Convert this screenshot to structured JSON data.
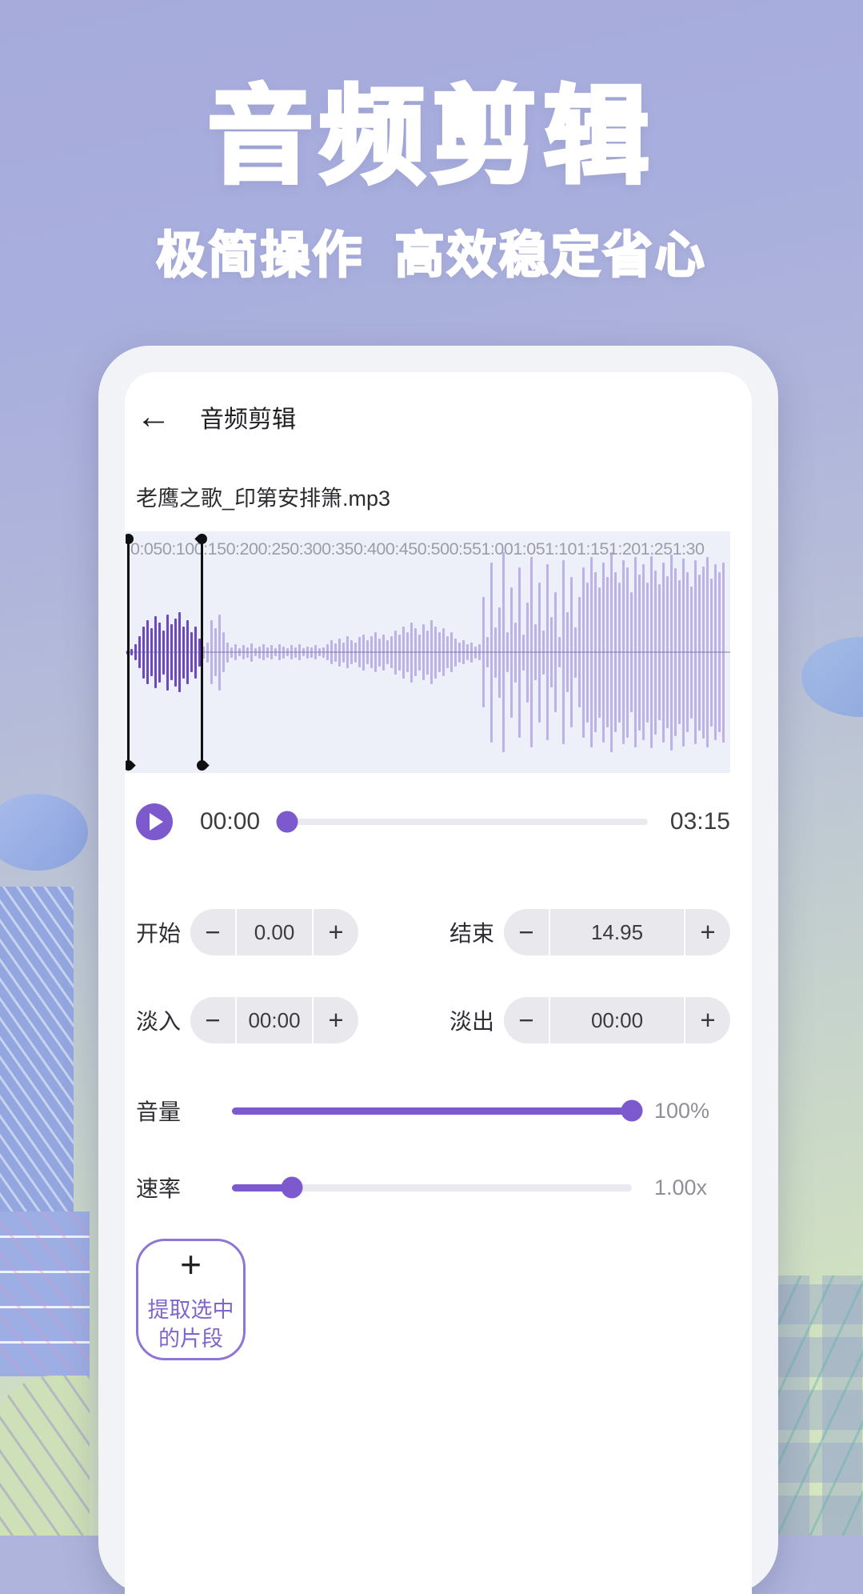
{
  "colors": {
    "accent_purple": "#7c59cc",
    "wave_selected": "#6b48c4",
    "wave_normal": "#b0a2e8",
    "wave_background": "#edf0f9",
    "stepper_background": "#e9e9ed",
    "hero_text": "#ffffff"
  },
  "hero": {
    "title": "音频剪辑",
    "subtitle": "极简操作 高效稳定省心"
  },
  "app": {
    "header": {
      "back_icon": "←",
      "title": "音频剪辑"
    },
    "file_name": "老鹰之歌_印第安排箫.mp3",
    "waveform": {
      "time_labels": [
        "0:05",
        "0:10",
        "0:15",
        "0:20",
        "0:25",
        "0:30",
        "0:35",
        "0:40",
        "0:45",
        "0:50",
        "0:55",
        "1:00",
        "1:05",
        "1:10",
        "1:15",
        "1:20",
        "1:25",
        "1:30"
      ],
      "selected_until_index": 19,
      "amplitudes": [
        0.02,
        0.03,
        0.08,
        0.16,
        0.26,
        0.32,
        0.24,
        0.36,
        0.3,
        0.22,
        0.38,
        0.28,
        0.34,
        0.4,
        0.26,
        0.32,
        0.2,
        0.26,
        0.14,
        0.06,
        0.1,
        0.32,
        0.24,
        0.38,
        0.2,
        0.1,
        0.05,
        0.08,
        0.04,
        0.07,
        0.05,
        0.09,
        0.04,
        0.06,
        0.08,
        0.05,
        0.07,
        0.04,
        0.08,
        0.06,
        0.04,
        0.07,
        0.05,
        0.08,
        0.04,
        0.06,
        0.05,
        0.07,
        0.04,
        0.05,
        0.08,
        0.12,
        0.09,
        0.14,
        0.1,
        0.16,
        0.12,
        0.1,
        0.15,
        0.18,
        0.12,
        0.16,
        0.2,
        0.14,
        0.18,
        0.12,
        0.16,
        0.22,
        0.18,
        0.26,
        0.2,
        0.3,
        0.24,
        0.18,
        0.28,
        0.22,
        0.32,
        0.26,
        0.2,
        0.24,
        0.16,
        0.2,
        0.14,
        0.1,
        0.12,
        0.08,
        0.1,
        0.06,
        0.08,
        0.55,
        0.15,
        0.9,
        0.25,
        0.45,
        1.0,
        0.2,
        0.65,
        0.3,
        0.85,
        0.18,
        0.5,
        0.95,
        0.28,
        0.7,
        0.22,
        0.88,
        0.35,
        0.6,
        0.15,
        0.92,
        0.4,
        0.75,
        0.25,
        0.55,
        0.85,
        0.7,
        0.95,
        0.8,
        0.65,
        0.9,
        0.75,
        1.0,
        0.8,
        0.7,
        0.92,
        0.85,
        0.6,
        0.95,
        0.78,
        0.88,
        0.7,
        0.96,
        0.82,
        0.68,
        0.9,
        0.76,
        0.98,
        0.84,
        0.72,
        0.94,
        0.8,
        0.66,
        0.92,
        0.78,
        0.86,
        0.95,
        0.74,
        0.88,
        0.8,
        0.9
      ]
    },
    "player": {
      "current_time": "00:00",
      "total_time": "03:15",
      "progress_percent": 2
    },
    "steppers": [
      {
        "label": "开始",
        "value": "0.00",
        "minus": "−",
        "plus": "+"
      },
      {
        "label": "结束",
        "value": "14.95",
        "minus": "−",
        "plus": "+"
      },
      {
        "label": "淡入",
        "value": "00:00",
        "minus": "−",
        "plus": "+"
      },
      {
        "label": "淡出",
        "value": "00:00",
        "minus": "−",
        "plus": "+"
      }
    ],
    "sliders": [
      {
        "label": "音量",
        "value_label": "100%",
        "percent": 100
      },
      {
        "label": "速率",
        "value_label": "1.00x",
        "percent": 15
      }
    ],
    "extract_button": {
      "plus_icon": "+",
      "label": "提取选中\n的片段"
    }
  }
}
